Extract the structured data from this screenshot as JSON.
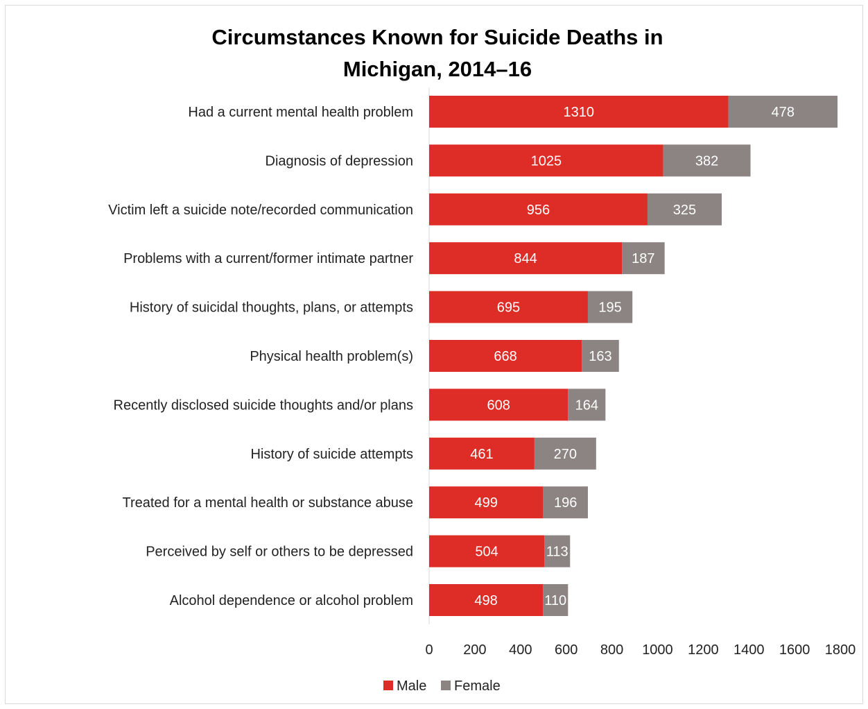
{
  "chart_data": {
    "type": "bar",
    "orientation": "horizontal",
    "stacked": true,
    "title_lines": [
      "Circumstances Known for Suicide Deaths in",
      "Michigan, 2014–16"
    ],
    "categories": [
      "Had a current mental health problem",
      "Diagnosis of depression",
      "Victim left a suicide note/recorded communication",
      "Problems with a current/former intimate partner",
      "History of suicidal thoughts, plans, or attempts",
      "Physical health problem(s)",
      "Recently disclosed suicide thoughts and/or plans",
      "History of suicide attempts",
      "Treated for a mental health or substance abuse",
      "Perceived by self or others to be depressed",
      "Alcohol dependence or alcohol problem"
    ],
    "series": [
      {
        "name": "Male",
        "color": "#de2d26",
        "values": [
          1310,
          1025,
          956,
          844,
          695,
          668,
          608,
          461,
          499,
          504,
          498
        ]
      },
      {
        "name": "Female",
        "color": "#8c8383",
        "values": [
          478,
          382,
          325,
          187,
          195,
          163,
          164,
          270,
          196,
          113,
          110
        ]
      }
    ],
    "xlim": [
      0,
      1800
    ],
    "xticks": [
      0,
      200,
      400,
      600,
      800,
      1000,
      1200,
      1400,
      1600,
      1800
    ],
    "grid": false,
    "legend_position": "bottom",
    "data_labels": true
  }
}
